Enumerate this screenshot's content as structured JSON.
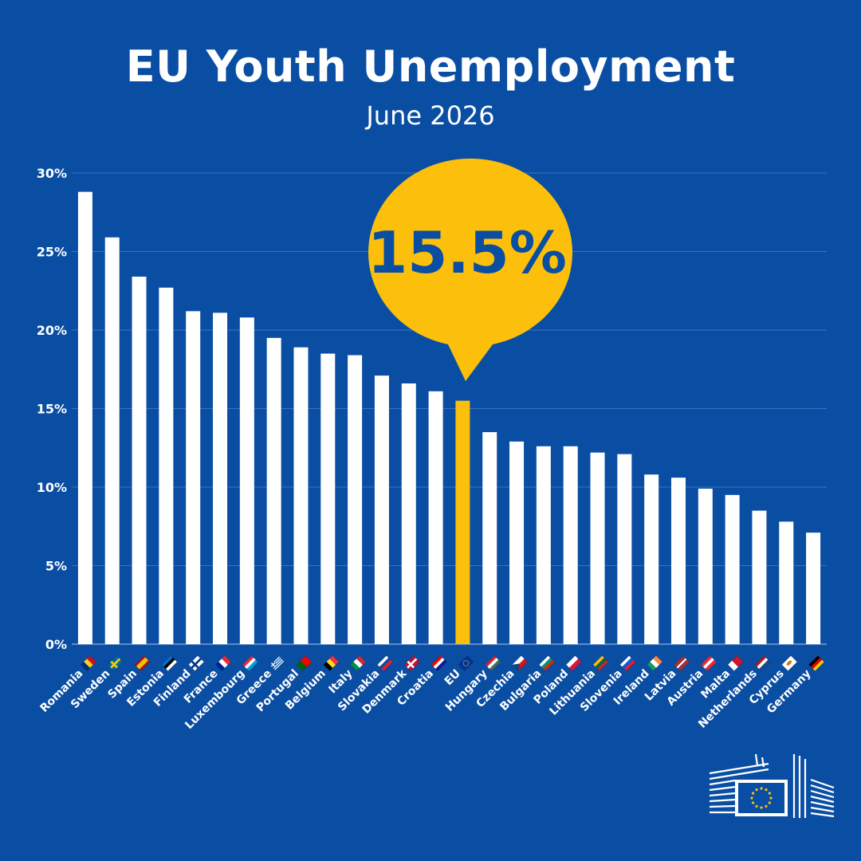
{
  "header": {
    "title": "EU Youth Unemployment",
    "subtitle": "June 2026"
  },
  "callout": {
    "value_label": "15.5%"
  },
  "colors": {
    "background": "#0a4ea3",
    "bar": "#ffffff",
    "highlight_bar": "#fbbf0c",
    "callout_fill": "#fbbf0c",
    "callout_text": "#0a4ea3",
    "gridline": "#3b72bb",
    "text": "#ffffff"
  },
  "logo": {
    "icon": "european-commission-logo-icon"
  },
  "chart_data": {
    "type": "bar",
    "title": "EU Youth Unemployment",
    "subtitle": "June 2026",
    "ylim": [
      0,
      30
    ],
    "yticks": [
      0,
      5,
      10,
      15,
      20,
      25,
      30
    ],
    "ytick_labels": [
      "0%",
      "5%",
      "10%",
      "15%",
      "20%",
      "25%",
      "30%"
    ],
    "grid": true,
    "highlight": "EU",
    "categories": [
      "Romania",
      "Sweden",
      "Spain",
      "Estonia",
      "Finland",
      "France",
      "Luxembourg",
      "Greece",
      "Portugal",
      "Belgium",
      "Italy",
      "Slovakia",
      "Denmark",
      "Croatia",
      "EU",
      "Hungary",
      "Czechia",
      "Bulgaria",
      "Poland",
      "Lithuania",
      "Slovenia",
      "Ireland",
      "Latvia",
      "Austria",
      "Malta",
      "Netherlands",
      "Cyprus",
      "Germany"
    ],
    "values": [
      28.8,
      25.9,
      23.4,
      22.7,
      21.2,
      21.1,
      20.8,
      19.5,
      18.9,
      18.5,
      18.4,
      17.1,
      16.6,
      16.1,
      15.5,
      13.5,
      12.9,
      12.6,
      12.6,
      12.2,
      12.1,
      10.8,
      10.6,
      9.9,
      9.5,
      8.5,
      7.8,
      7.1
    ],
    "flags": [
      {
        "type": "v",
        "colors": [
          "#002b7f",
          "#fcd116",
          "#ce1126"
        ]
      },
      {
        "type": "nordic",
        "colors": [
          "#006aa7",
          "#fecc00"
        ]
      },
      {
        "type": "h3",
        "colors": [
          "#aa151b",
          "#f1bf00",
          "#aa151b"
        ],
        "weights": [
          1,
          2,
          1
        ]
      },
      {
        "type": "h",
        "colors": [
          "#0072ce",
          "#000000",
          "#ffffff"
        ]
      },
      {
        "type": "nordic",
        "colors": [
          "#ffffff",
          "#003580"
        ]
      },
      {
        "type": "v",
        "colors": [
          "#002395",
          "#ffffff",
          "#ed2939"
        ]
      },
      {
        "type": "h",
        "colors": [
          "#ed2939",
          "#ffffff",
          "#00a1de"
        ]
      },
      {
        "type": "stripes",
        "colors": [
          "#0d5eaf",
          "#ffffff"
        ]
      },
      {
        "type": "v2",
        "colors": [
          "#006600",
          "#ff0000"
        ]
      },
      {
        "type": "v",
        "colors": [
          "#000000",
          "#fdda24",
          "#ef3340"
        ]
      },
      {
        "type": "v",
        "colors": [
          "#009246",
          "#ffffff",
          "#ce2b37"
        ]
      },
      {
        "type": "h",
        "colors": [
          "#ffffff",
          "#0b4ea2",
          "#ee1c25"
        ]
      },
      {
        "type": "nordic",
        "colors": [
          "#c8102e",
          "#ffffff"
        ]
      },
      {
        "type": "h",
        "colors": [
          "#ff0000",
          "#ffffff",
          "#171796"
        ]
      },
      {
        "type": "eu",
        "colors": [
          "#003399",
          "#ffcc00"
        ]
      },
      {
        "type": "h",
        "colors": [
          "#ce2939",
          "#ffffff",
          "#477050"
        ]
      },
      {
        "type": "cz",
        "colors": [
          "#ffffff",
          "#d7141a",
          "#11457e"
        ]
      },
      {
        "type": "h",
        "colors": [
          "#ffffff",
          "#00966e",
          "#d62612"
        ]
      },
      {
        "type": "h2",
        "colors": [
          "#ffffff",
          "#dc143c"
        ]
      },
      {
        "type": "h",
        "colors": [
          "#fdb913",
          "#006a44",
          "#c1272d"
        ]
      },
      {
        "type": "h",
        "colors": [
          "#ffffff",
          "#005ce5",
          "#ed1c24"
        ]
      },
      {
        "type": "v",
        "colors": [
          "#169b62",
          "#ffffff",
          "#ff883e"
        ]
      },
      {
        "type": "h3",
        "colors": [
          "#9e3039",
          "#ffffff",
          "#9e3039"
        ],
        "weights": [
          2,
          1,
          2
        ]
      },
      {
        "type": "h",
        "colors": [
          "#ed2939",
          "#ffffff",
          "#ed2939"
        ]
      },
      {
        "type": "v2",
        "colors": [
          "#ffffff",
          "#cf142b"
        ]
      },
      {
        "type": "h",
        "colors": [
          "#ae1c28",
          "#ffffff",
          "#21468b"
        ]
      },
      {
        "type": "cy",
        "colors": [
          "#ffffff",
          "#d57800"
        ]
      },
      {
        "type": "h",
        "colors": [
          "#000000",
          "#dd0000",
          "#ffce00"
        ]
      }
    ]
  }
}
